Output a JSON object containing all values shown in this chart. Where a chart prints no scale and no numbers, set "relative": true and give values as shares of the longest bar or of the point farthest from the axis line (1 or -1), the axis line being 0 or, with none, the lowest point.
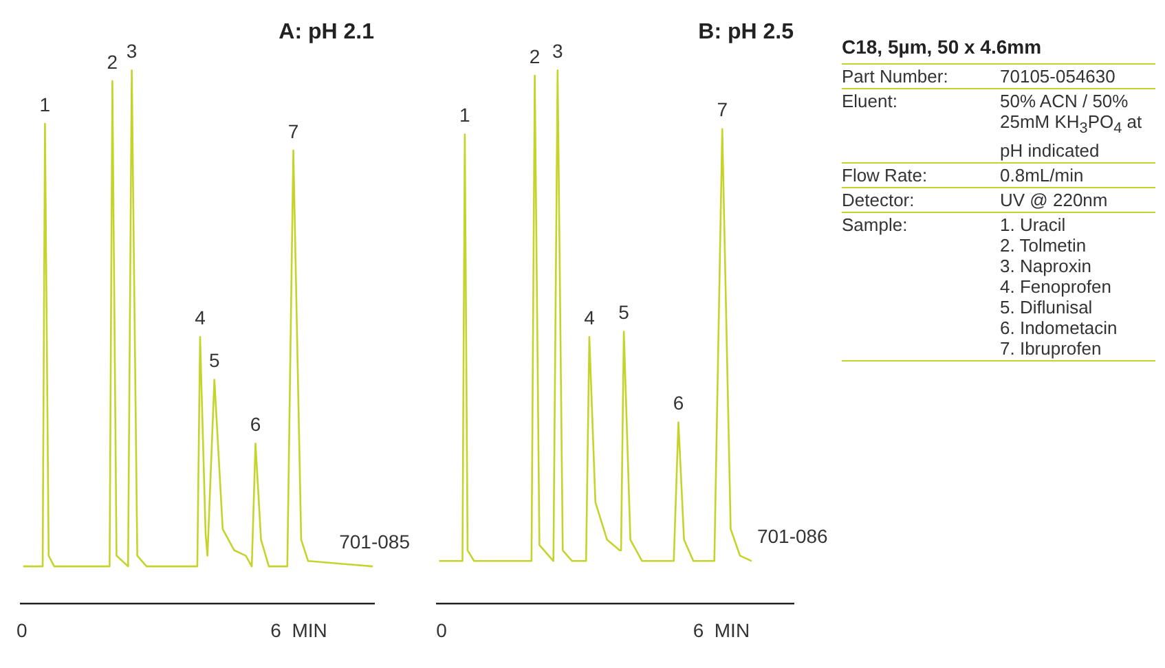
{
  "chart_data": [
    {
      "type": "line",
      "title": "A: pH 2.1",
      "relative": true,
      "xlim": [
        -0.03,
        7.63
      ],
      "xticks": [
        0,
        {
          "value": 6,
          "label": "6  MIN"
        }
      ],
      "legend": false,
      "marker": "none",
      "line_style": "solid",
      "series": [
        {
          "color": "#c5d42a",
          "x": [
            0.03,
            0.45,
            0.5,
            0.58,
            0.7,
            1.9,
            1.96,
            2.05,
            2.3,
            2.38,
            2.5,
            2.7,
            3.8,
            3.86,
            3.98,
            4.02,
            4.17,
            4.35,
            4.6,
            4.85,
            4.98,
            5.06,
            5.18,
            5.35,
            5.75,
            5.88,
            6.05,
            6.2,
            7.6
          ],
          "values": [
            0.07,
            0.07,
            0.9,
            0.09,
            0.07,
            0.07,
            0.98,
            0.09,
            0.07,
            1,
            0.09,
            0.07,
            0.07,
            0.5,
            0.13,
            0.09,
            0.42,
            0.14,
            0.1,
            0.09,
            0.07,
            0.3,
            0.12,
            0.07,
            0.07,
            0.85,
            0.12,
            0.08,
            0.07
          ]
        }
      ],
      "annotations": [
        {
          "text": "1",
          "x": 0.5,
          "y": 0.9
        },
        {
          "text": "2",
          "x": 1.96,
          "y": 0.98
        },
        {
          "text": "3",
          "x": 2.38,
          "y": 1
        },
        {
          "text": "4",
          "x": 3.86,
          "y": 0.5
        },
        {
          "text": "5",
          "x": 4.17,
          "y": 0.42
        },
        {
          "text": "6",
          "x": 5.06,
          "y": 0.3
        },
        {
          "text": "7",
          "x": 5.88,
          "y": 0.85
        },
        "701-085"
      ]
    },
    {
      "type": "line",
      "title": "B: pH 2.5",
      "relative": true,
      "xlim": [
        -0.1,
        7.55
      ],
      "xticks": [
        0,
        {
          "value": 6,
          "label": "6  MIN"
        }
      ],
      "legend": false,
      "marker": "none",
      "line_style": "solid",
      "series": [
        {
          "color": "#c5d42a",
          "x": [
            -0.05,
            0.45,
            0.5,
            0.56,
            0.7,
            1.93,
            2.0,
            2.1,
            2.4,
            2.49,
            2.6,
            2.8,
            3.1,
            3.17,
            3.3,
            3.55,
            3.82,
            3.85,
            3.91,
            4.05,
            4.3,
            4.98,
            5.08,
            5.2,
            5.4,
            5.85,
            6.02,
            6.2,
            6.4,
            6.65
          ],
          "values": [
            0.08,
            0.08,
            0.88,
            0.1,
            0.08,
            0.08,
            0.99,
            0.11,
            0.08,
            1,
            0.1,
            0.08,
            0.08,
            0.5,
            0.19,
            0.12,
            0.1,
            0.1,
            0.51,
            0.12,
            0.08,
            0.08,
            0.34,
            0.12,
            0.08,
            0.08,
            0.89,
            0.14,
            0.09,
            0.08
          ]
        }
      ],
      "annotations": [
        {
          "text": "1",
          "x": 0.5,
          "y": 0.88
        },
        {
          "text": "2",
          "x": 2.0,
          "y": 0.99
        },
        {
          "text": "3",
          "x": 2.49,
          "y": 1
        },
        {
          "text": "4",
          "x": 3.17,
          "y": 0.5
        },
        {
          "text": "5",
          "x": 3.91,
          "y": 0.51
        },
        {
          "text": "6",
          "x": 5.08,
          "y": 0.34
        },
        {
          "text": "7",
          "x": 6.02,
          "y": 0.89
        },
        "701-086"
      ]
    },
    {
      "type": "other",
      "title": "C18, 5µm, 50 x 4.6mm",
      "annotations": [
        "Part Number:",
        "70105-054630",
        "Eluent:",
        "50% ACN / 50% 25mM KH$_{3}$PO$_{4}$ at pH indicated",
        "Flow Rate:",
        "0.8mL/min",
        "Detector:",
        "UV @ 220nm",
        "Sample:",
        "1. Uracil\n2. Tolmetin\n3. Naproxin\n4. Fenoprofen\n5. Diflunisal\n6. Indometacin\n7. Ibruprofen"
      ]
    }
  ]
}
